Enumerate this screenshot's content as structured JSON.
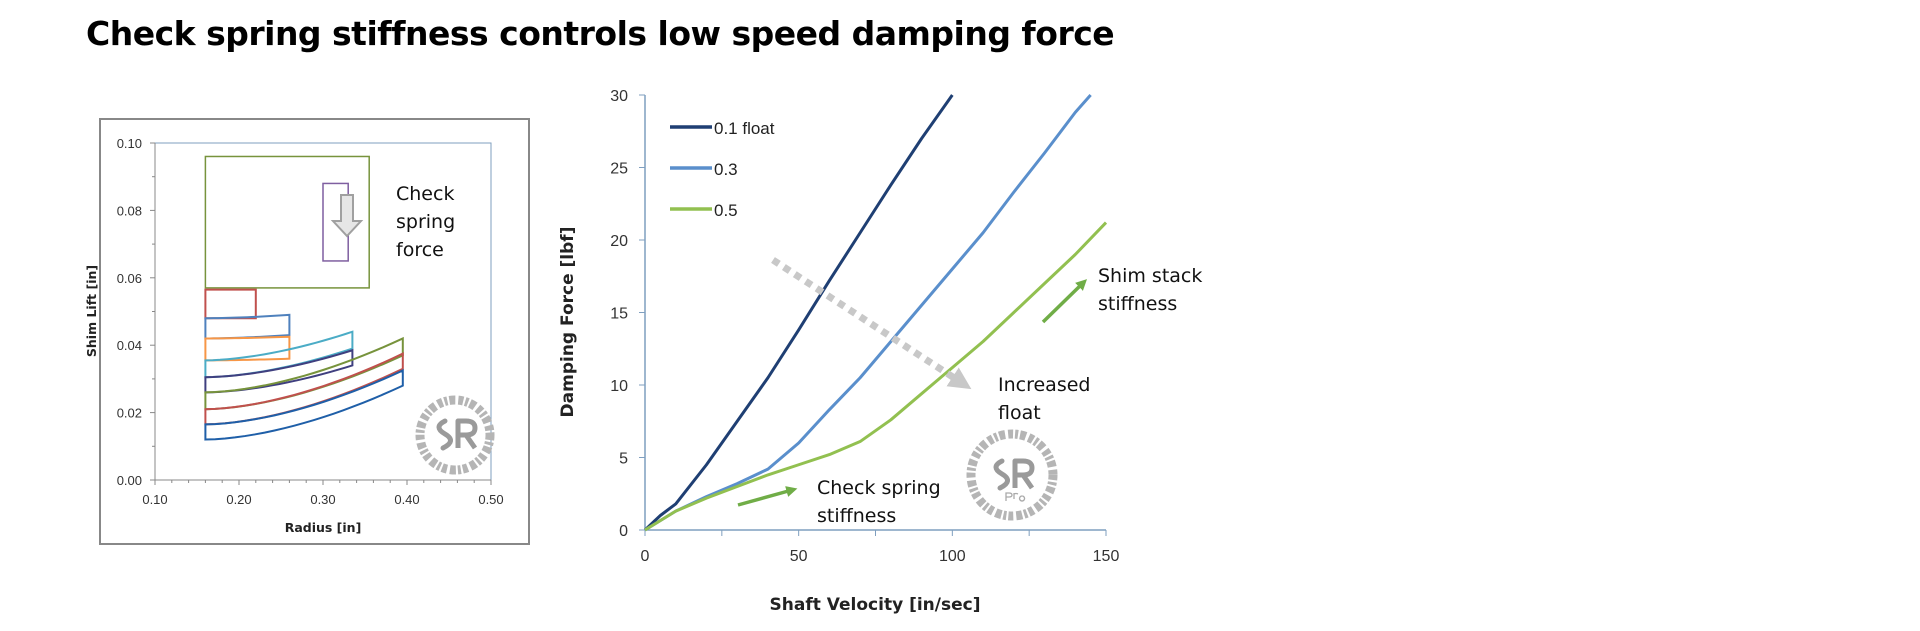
{
  "title": "Check spring stiffness controls low speed damping force",
  "chart_data": [
    {
      "type": "line",
      "xlabel": "Radius [in]",
      "ylabel": "Shim Lift [in]",
      "xlim": [
        0.1,
        0.5
      ],
      "ylim": [
        0.0,
        0.1
      ],
      "xticks": [
        "0.10",
        "0.20",
        "0.30",
        "0.40",
        "0.50"
      ],
      "yticks": [
        "0.00",
        "0.02",
        "0.04",
        "0.06",
        "0.08",
        "0.10"
      ],
      "grid": false,
      "annotation": "Check spring force",
      "boxes": [
        {
          "color": "#77933c",
          "r": [
            0.16,
            0.355
          ],
          "lift": [
            0.057,
            0.096
          ]
        },
        {
          "color": "#7f5fa0",
          "r": [
            0.3,
            0.33
          ],
          "lift": [
            0.065,
            0.088
          ]
        }
      ],
      "shims": [
        {
          "color": "#c0504d",
          "r": [
            0.16,
            0.22
          ],
          "bottom": [
            0.048,
            0.048
          ],
          "thickness": 0.0085
        },
        {
          "color": "#4f81bd",
          "r": [
            0.16,
            0.26
          ],
          "bottom": [
            0.042,
            0.043
          ],
          "thickness": 0.006
        },
        {
          "color": "#f79646",
          "r": [
            0.16,
            0.26
          ],
          "bottom": [
            0.0355,
            0.036
          ],
          "thickness": 0.0065
        },
        {
          "color": "#4bacc6",
          "r": [
            0.16,
            0.335
          ],
          "bottom": [
            0.0305,
            0.039
          ],
          "thickness": 0.005
        },
        {
          "color": "#3f3f7f",
          "r": [
            0.16,
            0.335
          ],
          "bottom": [
            0.026,
            0.034
          ],
          "thickness": 0.0045
        },
        {
          "color": "#77933c",
          "r": [
            0.16,
            0.395
          ],
          "bottom": [
            0.021,
            0.037
          ],
          "thickness": 0.005
        },
        {
          "color": "#c0504d",
          "r": [
            0.16,
            0.395
          ],
          "bottom": [
            0.0165,
            0.033
          ],
          "thickness": 0.0045
        },
        {
          "color": "#1f5fa8",
          "r": [
            0.16,
            0.395
          ],
          "bottom": [
            0.012,
            0.028
          ],
          "thickness": 0.0045
        }
      ],
      "watermark": {
        "ring": "www.ShimReStackor.com",
        "logo": "SR"
      }
    },
    {
      "type": "line",
      "xlabel": "Shaft Velocity [in/sec]",
      "ylabel": "Damping Force [lbf]",
      "xlim": [
        0,
        150
      ],
      "ylim": [
        0,
        30
      ],
      "xticks": [
        "0",
        "50",
        "100",
        "150"
      ],
      "yticks": [
        "0",
        "5",
        "10",
        "15",
        "20",
        "25",
        "30"
      ],
      "grid": false,
      "legend": "top-left",
      "series": [
        {
          "name": "0.1 float",
          "color": "#1f3f73",
          "x": [
            0,
            5,
            10,
            20,
            30,
            40,
            50,
            60,
            70,
            80,
            90,
            100
          ],
          "y": [
            0,
            1,
            1.8,
            4.5,
            7.5,
            10.5,
            13.8,
            17.2,
            20.5,
            23.8,
            27,
            30
          ]
        },
        {
          "name": "0.3",
          "color": "#5a8fcc",
          "x": [
            0,
            10,
            20,
            30,
            40,
            50,
            60,
            70,
            80,
            90,
            100,
            110,
            120,
            130,
            140,
            145
          ],
          "y": [
            0,
            1.3,
            2.3,
            3.2,
            4.2,
            6,
            8.3,
            10.5,
            13,
            15.5,
            18,
            20.5,
            23.3,
            26,
            28.8,
            30
          ]
        },
        {
          "name": "0.5",
          "color": "#92c050",
          "x": [
            0,
            10,
            20,
            30,
            40,
            50,
            60,
            70,
            80,
            90,
            100,
            110,
            120,
            130,
            140,
            150
          ],
          "y": [
            0,
            1.3,
            2.2,
            3,
            3.8,
            4.5,
            5.2,
            6.1,
            7.6,
            9.4,
            11.2,
            13,
            15,
            17,
            19,
            21.2
          ]
        }
      ],
      "annotations": [
        {
          "text": [
            "Shim stack",
            "stiffness"
          ],
          "arrow_color": "#70ad47"
        },
        {
          "text": [
            "Increased",
            "float"
          ],
          "arrow_color": "#c8c8c8"
        },
        {
          "text": [
            "Check spring",
            "stiffness"
          ],
          "arrow_color": "#70ad47"
        }
      ],
      "watermark": {
        "ring": "www.ShimReStackor.com",
        "logo": "SR",
        "sub": "pro"
      }
    }
  ]
}
